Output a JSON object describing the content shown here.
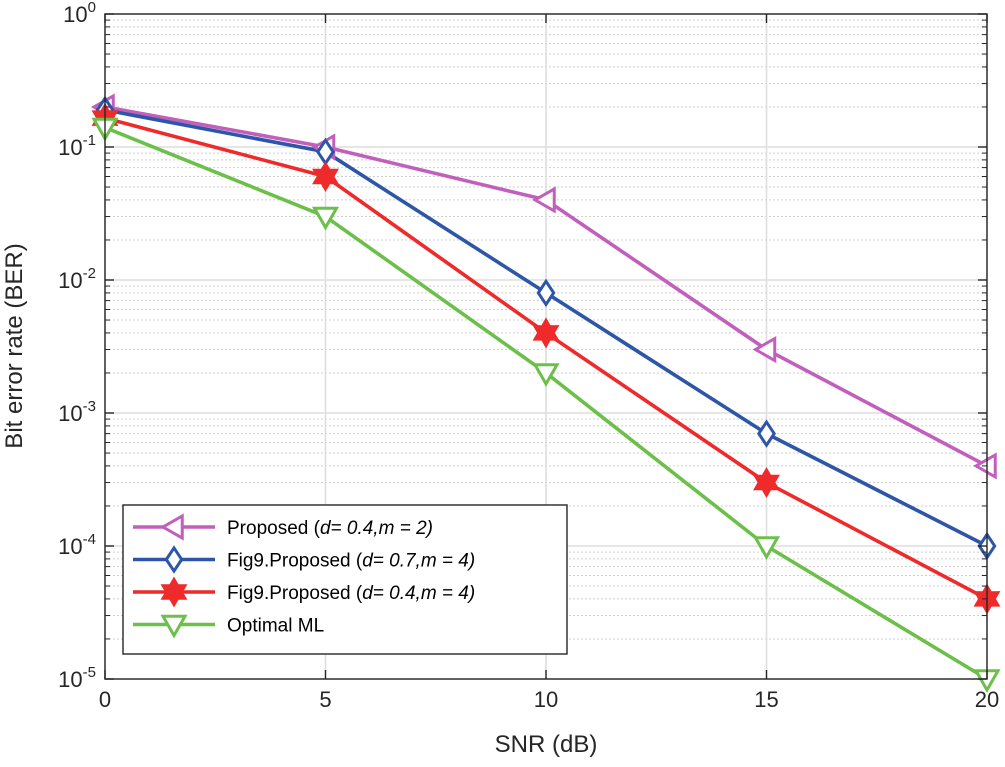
{
  "chart_data": {
    "type": "line",
    "title": "",
    "xlabel": "SNR (dB)",
    "ylabel": "Bit error rate (BER)",
    "yscale": "log",
    "xlim": [
      0,
      20
    ],
    "ylim": [
      1e-05,
      1
    ],
    "grid": true,
    "x_ticks": [
      0,
      5,
      10,
      15,
      20
    ],
    "x_tick_labels": [
      "0",
      "5",
      "10",
      "15",
      "20"
    ],
    "y_ticks": [
      1,
      0.1,
      0.01,
      0.001,
      0.0001,
      1e-05
    ],
    "y_tick_labels": [
      {
        "base": "10",
        "exp": "0"
      },
      {
        "base": "10",
        "exp": "-1"
      },
      {
        "base": "10",
        "exp": "-2"
      },
      {
        "base": "10",
        "exp": "-3"
      },
      {
        "base": "10",
        "exp": "-4"
      },
      {
        "base": "10",
        "exp": "-5"
      }
    ],
    "x": [
      0,
      5,
      10,
      15,
      20
    ],
    "legend_position": "bottom-left",
    "series": [
      {
        "name": "Proposed (d= 0.4,m = 2)",
        "legend_parts": [
          {
            "text": "Proposed (",
            "italic": false
          },
          {
            "text": "d= 0.4,m = 2)",
            "italic": true
          }
        ],
        "color": "#c25fbd",
        "marker": "triangle-left",
        "values": [
          0.2,
          0.1,
          0.04,
          0.003,
          0.0004
        ]
      },
      {
        "name": "Fig9.Proposed (d= 0.7,m = 4)",
        "legend_parts": [
          {
            "text": "Fig9.Proposed (",
            "italic": false
          },
          {
            "text": "d= 0.7,m = 4)",
            "italic": true
          }
        ],
        "color": "#2e56a8",
        "marker": "diamond",
        "values": [
          0.19,
          0.092,
          0.008,
          0.0007,
          0.0001
        ]
      },
      {
        "name": "Fig9.Proposed (d= 0.4,m = 4)",
        "legend_parts": [
          {
            "text": "Fig9.Proposed (",
            "italic": false
          },
          {
            "text": "d= 0.4,m = 4)",
            "italic": true
          }
        ],
        "color": "#ee2a2a",
        "marker": "hexagram",
        "values": [
          0.165,
          0.06,
          0.004,
          0.0003,
          4e-05
        ]
      },
      {
        "name": "Optimal ML",
        "legend_parts": [
          {
            "text": "Optimal ML",
            "italic": false
          }
        ],
        "color": "#6cc04a",
        "marker": "triangle-down",
        "values": [
          0.14,
          0.03,
          0.002,
          0.0001,
          1e-05
        ]
      }
    ]
  }
}
